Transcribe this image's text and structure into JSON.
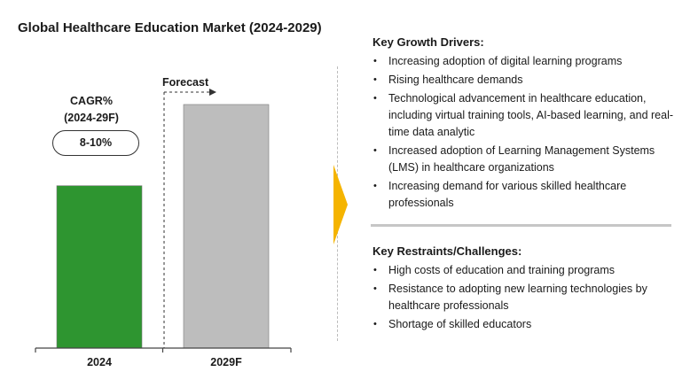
{
  "title": "Global Healthcare Education Market (2024-2029)",
  "cagr": {
    "label_line1": "CAGR%",
    "label_line2": "(2024-29F)",
    "value": "8-10%"
  },
  "forecast_label": "Forecast",
  "chart_data": {
    "type": "bar",
    "title": "Global Healthcare Education Market (2024-2029)",
    "categories": [
      "2024",
      "2029F"
    ],
    "values": [
      1.0,
      1.5
    ],
    "colors": [
      "#2e9530",
      "#bdbdbd"
    ],
    "ylim": [
      0,
      1.5
    ],
    "xlabel": "",
    "ylabel": "",
    "grid": false,
    "legend": "none",
    "annotations": [
      "Forecast",
      "CAGR% (2024-29F) 8-10%"
    ]
  },
  "drivers": {
    "heading": "Key Growth Drivers:",
    "items": [
      {
        "lines": [
          "Increasing adoption of digital learning programs"
        ]
      },
      {
        "lines": [
          "Rising healthcare demands"
        ]
      },
      {
        "lines": [
          "Technological advancement in healthcare education,",
          "including virtual training tools, AI-based learning, and real-",
          "time data analytic"
        ]
      },
      {
        "lines": [
          "Increased adoption of Learning Management Systems",
          "(LMS) in healthcare organizations"
        ]
      },
      {
        "lines": [
          "Increasing demand for various skilled healthcare",
          "professionals"
        ]
      }
    ]
  },
  "restraints": {
    "heading": "Key Restraints/Challenges:",
    "items": [
      {
        "lines": [
          "High costs of education and training programs"
        ]
      },
      {
        "lines": [
          "Resistance to adopting new learning technologies by",
          "healthcare professionals"
        ]
      },
      {
        "lines": [
          "Shortage of skilled educators"
        ]
      }
    ]
  },
  "colors": {
    "accent_arrow": "#f5b400",
    "bar_actual": "#2e9530",
    "bar_forecast": "#bdbdbd"
  }
}
